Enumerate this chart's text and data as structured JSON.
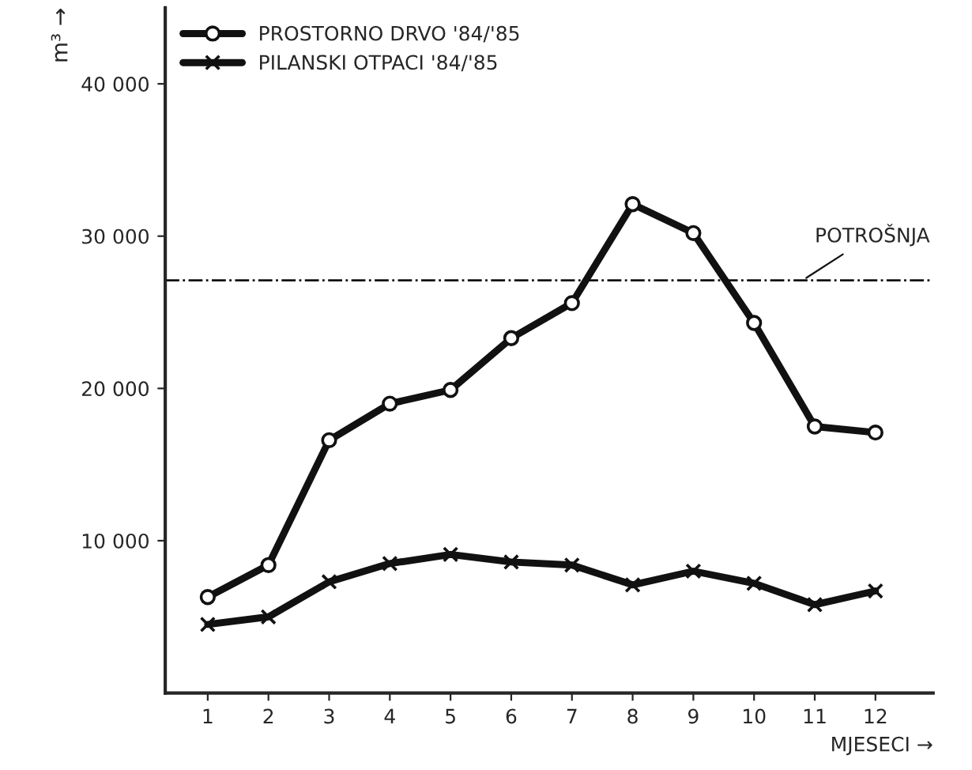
{
  "chart_data": {
    "type": "line",
    "categories": [
      "1",
      "2",
      "3",
      "4",
      "5",
      "6",
      "7",
      "8",
      "9",
      "10",
      "11",
      "12"
    ],
    "series": [
      {
        "name": "PROSTORNO DRVO '84/'85",
        "color": "#111111",
        "marker": "circle",
        "values": [
          6300,
          8400,
          16600,
          19000,
          19900,
          23300,
          25600,
          32100,
          30200,
          24300,
          17500,
          17100
        ]
      },
      {
        "name": "PILANSKI OTPACI '84/'85",
        "color": "#111111",
        "marker": "cross",
        "values": [
          4500,
          5000,
          7300,
          8500,
          9100,
          8600,
          8400,
          7100,
          8000,
          7200,
          5800,
          6700
        ]
      }
    ],
    "ylim": [
      0,
      45000
    ],
    "yticks": [
      {
        "value": 10000,
        "label": "10 000"
      },
      {
        "value": 20000,
        "label": "20 000"
      },
      {
        "value": 30000,
        "label": "30 000"
      },
      {
        "value": 40000,
        "label": "40 000"
      }
    ],
    "xlabel": "MJESECI →",
    "ylabel": "m³ →",
    "ref_lines": [
      {
        "axis": "y",
        "value": 27100,
        "label": "POTROŠNJA",
        "color": "#111111",
        "line_style": "dashdot"
      }
    ],
    "legend": "top left",
    "grid": false,
    "line_style": "solid"
  }
}
